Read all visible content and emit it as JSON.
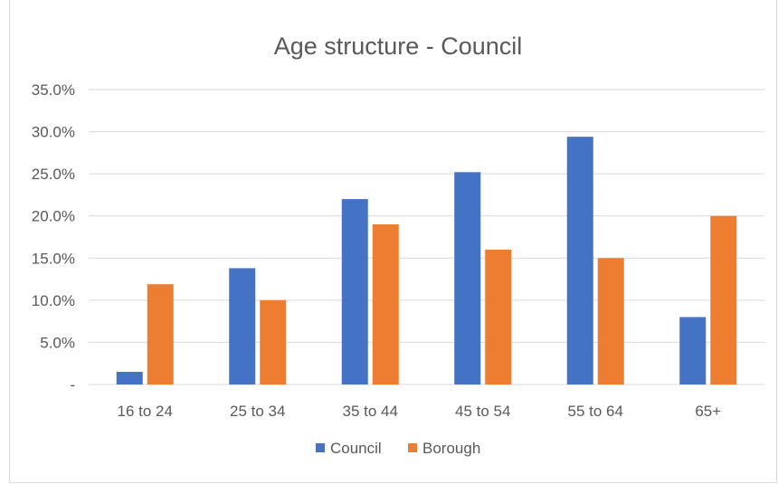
{
  "chart_data": {
    "type": "bar",
    "title": "Age structure - Council",
    "xlabel": "",
    "ylabel": "",
    "categories": [
      "16 to 24",
      "25 to 34",
      "35 to 44",
      "45 to 54",
      "55 to 64",
      "65+"
    ],
    "series": [
      {
        "name": "Council",
        "color": "#4472C4",
        "values": [
          1.5,
          13.8,
          22.0,
          25.2,
          29.4,
          8.0
        ]
      },
      {
        "name": "Borough",
        "color": "#ED7D31",
        "values": [
          11.9,
          10.0,
          19.0,
          16.0,
          15.0,
          20.0
        ]
      }
    ],
    "ylim": [
      0,
      35
    ],
    "y_ticks": [
      0,
      5,
      10,
      15,
      20,
      25,
      30,
      35
    ],
    "y_tick_labels": [
      "-",
      "5.0%",
      "10.0%",
      "15.0%",
      "20.0%",
      "25.0%",
      "30.0%",
      "35.0%"
    ],
    "grid": true,
    "legend_position": "bottom"
  }
}
